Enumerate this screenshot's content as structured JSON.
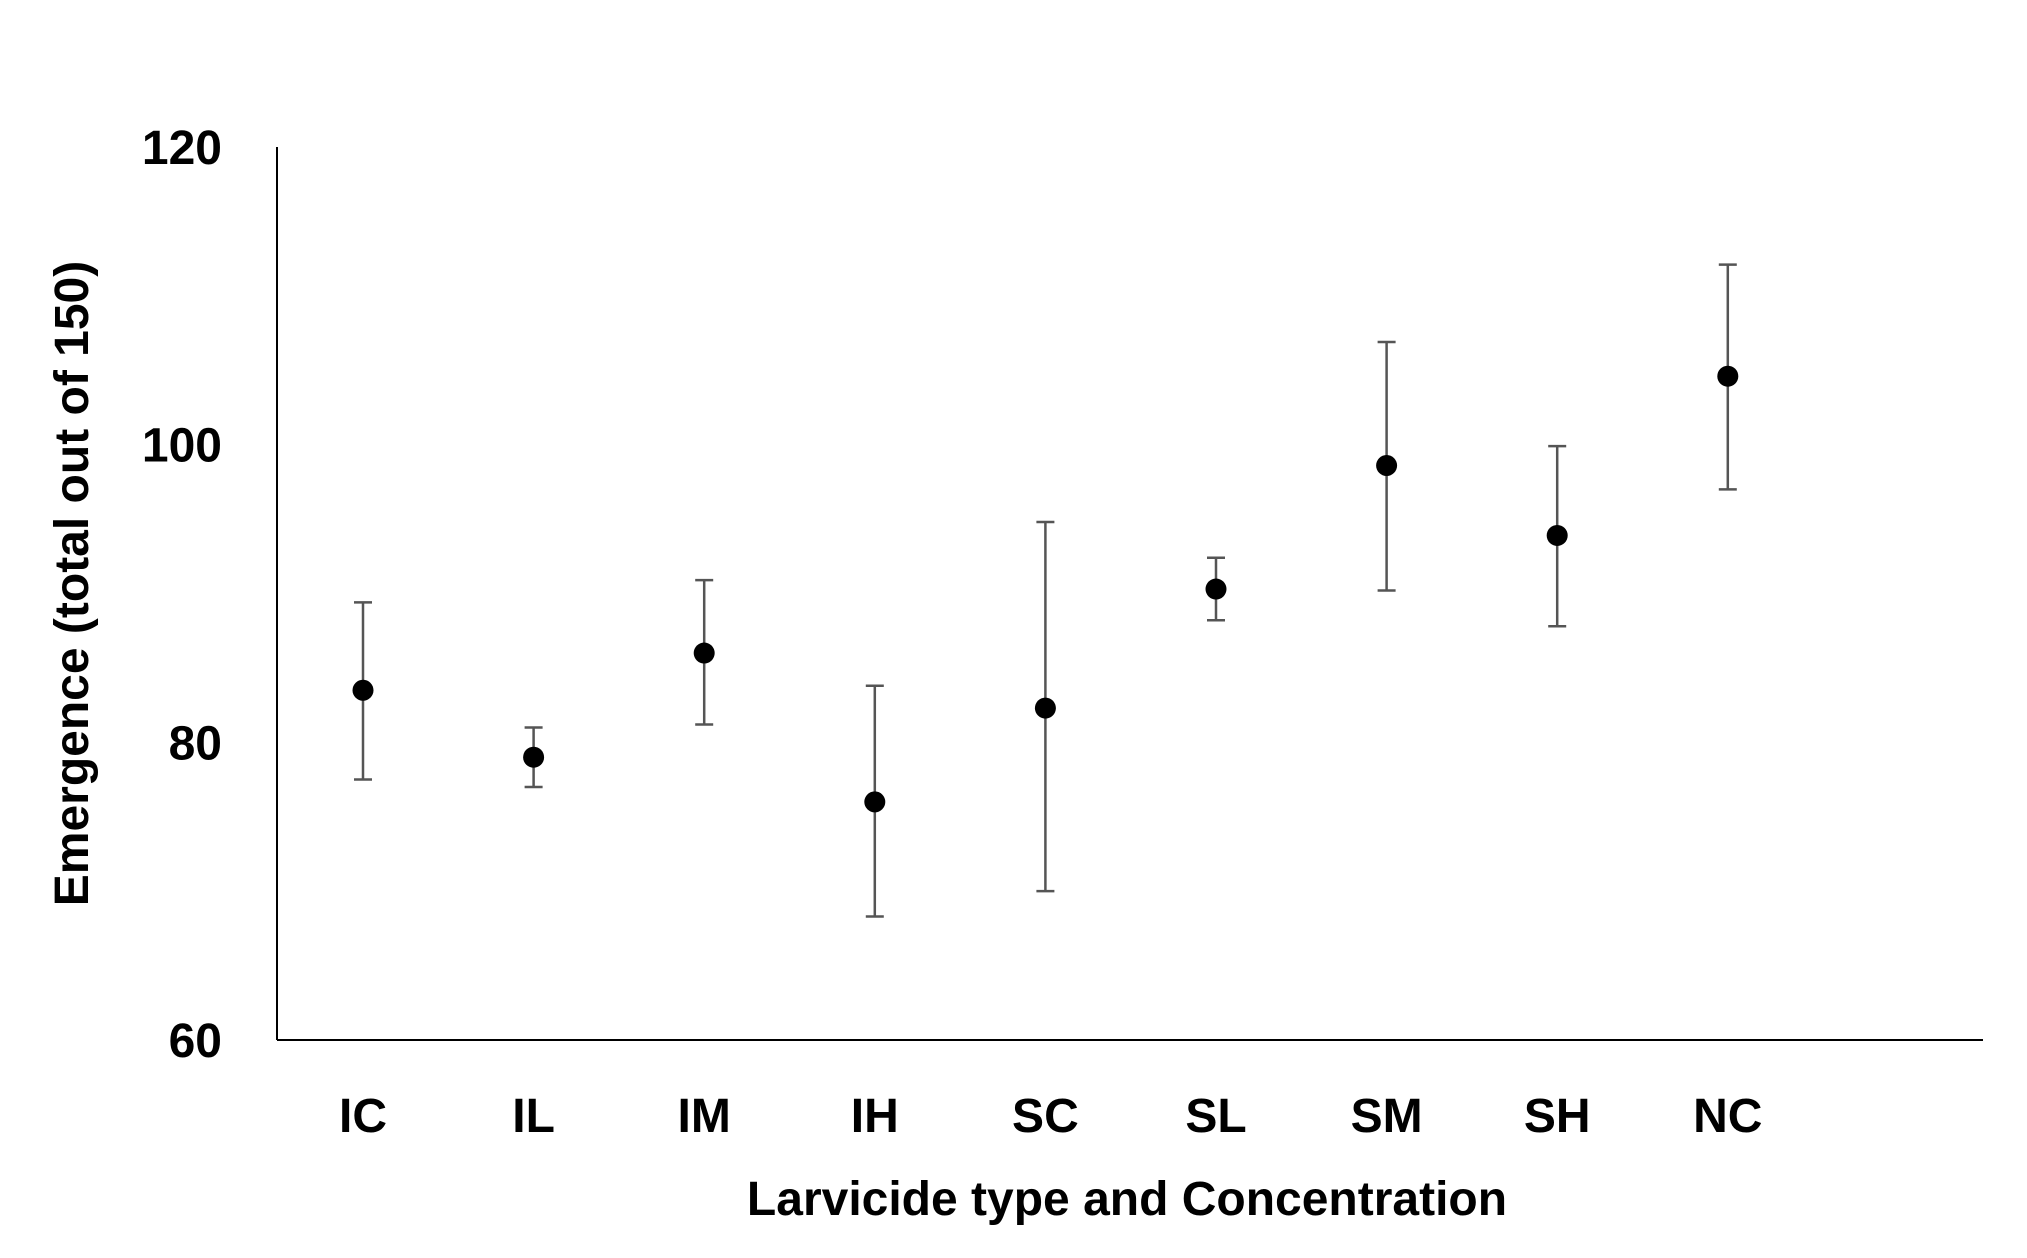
{
  "chart_data": {
    "type": "scatter",
    "title": "",
    "xlabel": "Larvicide type and Concentration",
    "ylabel": "Emergence (total out of 150)",
    "ylim": [
      60,
      120
    ],
    "yticks": [
      "60",
      "80",
      "100",
      "120"
    ],
    "grid": false,
    "legend": "none",
    "categories": [
      "IC",
      "IL",
      "IM",
      "IH",
      "SC",
      "SL",
      "SM",
      "SH",
      "NC"
    ],
    "series": [
      {
        "values": [
          83.5,
          79,
          86,
          76,
          82.3,
          90.3,
          98.6,
          93.9,
          104.6
        ],
        "error_low": [
          77.5,
          77,
          81.2,
          68.3,
          70,
          88.2,
          90.2,
          87.8,
          97
        ],
        "error_high": [
          89.4,
          81,
          90.9,
          83.8,
          94.8,
          92.4,
          106.9,
          99.9,
          112.1
        ]
      }
    ],
    "colors": {
      "marker": "#000000",
      "error_bar": "#555555",
      "axis": "#000000"
    }
  }
}
